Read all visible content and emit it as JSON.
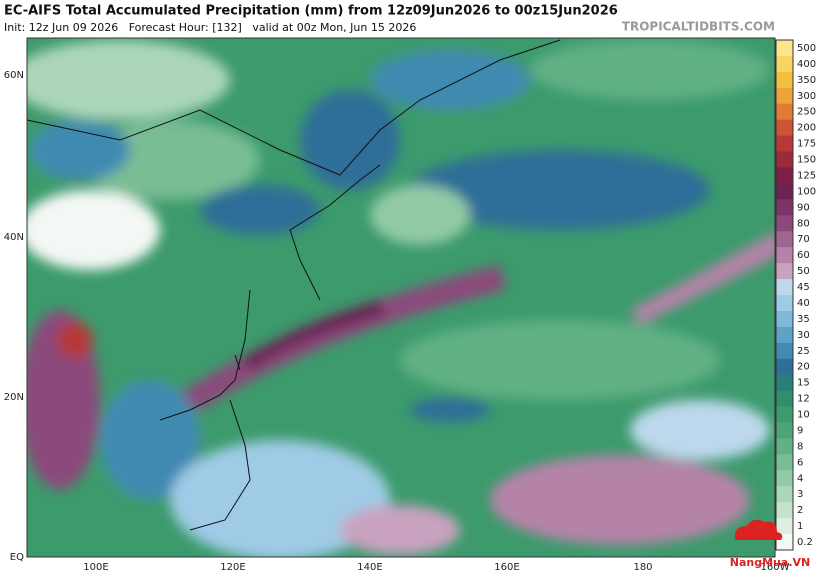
{
  "header": {
    "title": "EC-AIFS Total Accumulated Precipitation (mm) from 12z09Jun2026 to 00z15Jun2026",
    "subtitle": "Init: 12z Jun 09 2026   Forecast Hour: [132]   valid at 00z Mon, Jun 15 2026",
    "watermark": "TROPICALTIDBITS.COM"
  },
  "map": {
    "lat_labels": [
      "60N",
      "40N",
      "20N",
      "EQ"
    ],
    "lon_labels": [
      "100E",
      "120E",
      "140E",
      "160E",
      "180",
      "160W"
    ]
  },
  "colorbar": [
    {
      "label": "500",
      "color": "#fde68a"
    },
    {
      "label": "400",
      "color": "#f7d560"
    },
    {
      "label": "350",
      "color": "#f2c040"
    },
    {
      "label": "300",
      "color": "#eda33a"
    },
    {
      "label": "250",
      "color": "#e07c35"
    },
    {
      "label": "200",
      "color": "#cc5535"
    },
    {
      "label": "175",
      "color": "#b83838"
    },
    {
      "label": "150",
      "color": "#9c2a3a"
    },
    {
      "label": "125",
      "color": "#7d1f46"
    },
    {
      "label": "100",
      "color": "#6b2352"
    },
    {
      "label": "90",
      "color": "#7b3468"
    },
    {
      "label": "80",
      "color": "#8c4a7c"
    },
    {
      "label": "70",
      "color": "#a06590"
    },
    {
      "label": "60",
      "color": "#b583a8"
    },
    {
      "label": "50",
      "color": "#c9a2c0"
    },
    {
      "label": "45",
      "color": "#bdd8ec"
    },
    {
      "label": "40",
      "color": "#9fcbe6"
    },
    {
      "label": "35",
      "color": "#7fb8d8"
    },
    {
      "label": "30",
      "color": "#5fa2c8"
    },
    {
      "label": "25",
      "color": "#418ab2"
    },
    {
      "label": "20",
      "color": "#2e6e98"
    },
    {
      "label": "15",
      "color": "#2a7f7a"
    },
    {
      "label": "12",
      "color": "#2f8f6a"
    },
    {
      "label": "10",
      "color": "#3c9a6c"
    },
    {
      "label": "9",
      "color": "#4da577"
    },
    {
      "label": "8",
      "color": "#61b185"
    },
    {
      "label": "6",
      "color": "#78bd94"
    },
    {
      "label": "4",
      "color": "#92caa6"
    },
    {
      "label": "3",
      "color": "#acd6b9"
    },
    {
      "label": "2",
      "color": "#c6e2cc"
    },
    {
      "label": "1",
      "color": "#dfeee0"
    },
    {
      "label": "0.2",
      "color": "#f4f8f4"
    }
  ],
  "logo": "NangMua.VN"
}
